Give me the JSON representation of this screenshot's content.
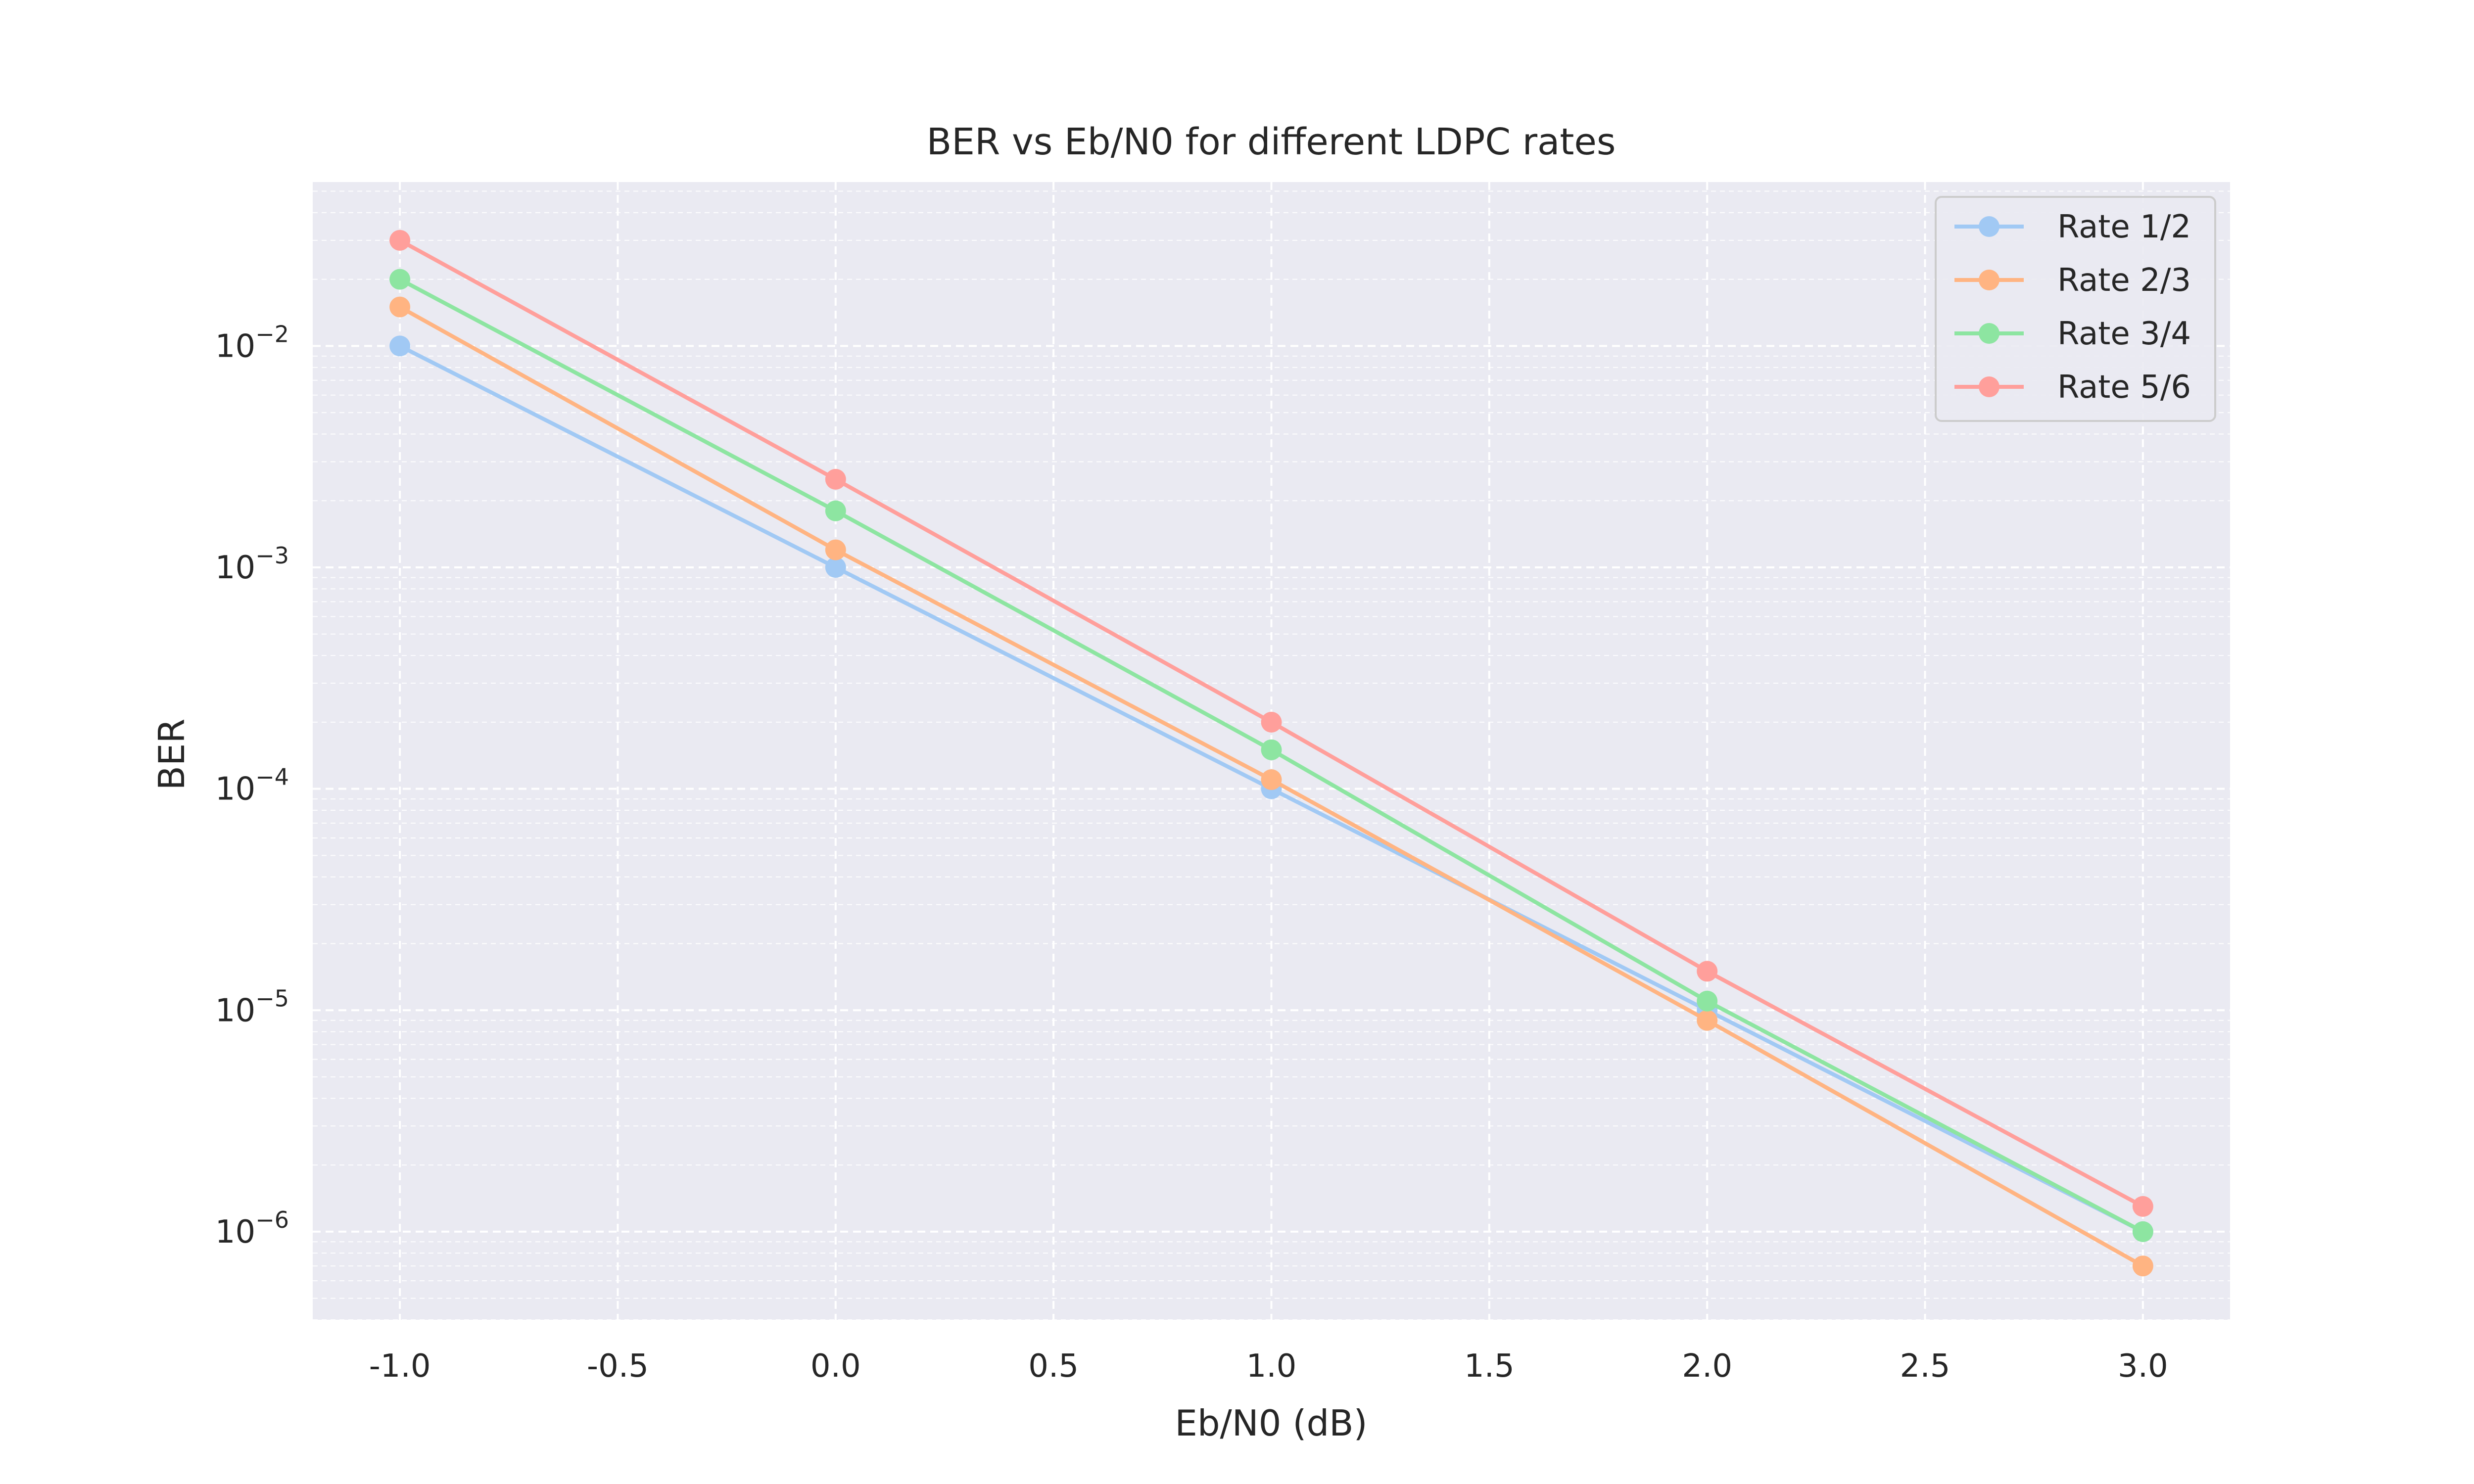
{
  "chart_data": {
    "type": "line",
    "title": "BER vs Eb/N0 for different LDPC rates",
    "xlabel": "Eb/N0 (dB)",
    "ylabel": "BER",
    "yscale": "log",
    "xlim": [
      -1.2,
      3.2
    ],
    "ylim": [
      4e-07,
      0.055
    ],
    "x": [
      -1.0,
      0.0,
      1.0,
      2.0,
      3.0
    ],
    "x_ticks": [
      "-1.0",
      "-0.5",
      "0.0",
      "0.5",
      "1.0",
      "1.5",
      "2.0",
      "2.5",
      "3.0"
    ],
    "y_ticks": [
      {
        "base": "10",
        "exp": "−2",
        "value": 0.01
      },
      {
        "base": "10",
        "exp": "−3",
        "value": 0.001
      },
      {
        "base": "10",
        "exp": "−4",
        "value": 0.0001
      },
      {
        "base": "10",
        "exp": "−5",
        "value": 1e-05
      },
      {
        "base": "10",
        "exp": "−6",
        "value": 1e-06
      }
    ],
    "grid": true,
    "legend_position": "top-right",
    "series": [
      {
        "name": "Rate 1/2",
        "color": "#a1c9f4",
        "values": [
          0.01,
          0.001,
          0.0001,
          1e-05,
          1e-06
        ]
      },
      {
        "name": "Rate 2/3",
        "color": "#ffb482",
        "values": [
          0.015,
          0.0012,
          0.00011,
          9e-06,
          7e-07
        ]
      },
      {
        "name": "Rate 3/4",
        "color": "#8de5a1",
        "values": [
          0.02,
          0.0018,
          0.00015,
          1.1e-05,
          1e-06
        ]
      },
      {
        "name": "Rate 5/6",
        "color": "#ff9f9b",
        "values": [
          0.03,
          0.0025,
          0.0002,
          1.5e-05,
          1.3e-06
        ]
      }
    ],
    "colors": {
      "plot_background": "#eaeaf2",
      "grid": "#ffffff"
    }
  }
}
